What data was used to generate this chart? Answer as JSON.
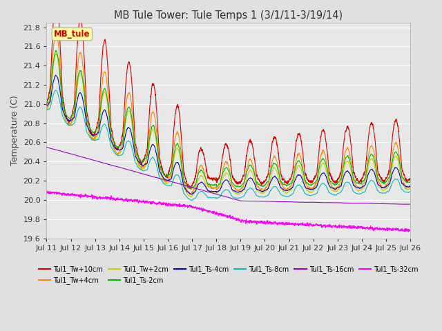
{
  "title": "MB Tule Tower: Tule Temps 1 (3/1/11-3/19/14)",
  "ylabel": "Temperature (C)",
  "xlabel": "",
  "ylim": [
    19.6,
    21.85
  ],
  "yticks": [
    19.6,
    19.8,
    20.0,
    20.2,
    20.4,
    20.6,
    20.8,
    21.0,
    21.2,
    21.4,
    21.6,
    21.8
  ],
  "xtick_labels": [
    "Jul 11",
    "Jul 12",
    "Jul 13",
    "Jul 14",
    "Jul 15",
    "Jul 16",
    "Jul 17",
    "Jul 18",
    "Jul 19",
    "Jul 20",
    "Jul 21",
    "Jul 22",
    "Jul 23",
    "Jul 24",
    "Jul 25",
    "Jul 26"
  ],
  "background_color": "#e0e0e0",
  "plot_bg_color": "#e8e8e8",
  "grid_color": "#ffffff",
  "series": [
    {
      "label": "Tul1_Tw+10cm",
      "color": "#dd0000"
    },
    {
      "label": "Tul1_Tw+4cm",
      "color": "#ff8800"
    },
    {
      "label": "Tul1_Tw+2cm",
      "color": "#cccc00"
    },
    {
      "label": "Tul1_Ts-2cm",
      "color": "#00bb00"
    },
    {
      "label": "Tul1_Ts-4cm",
      "color": "#0000cc"
    },
    {
      "label": "Tul1_Ts-8cm",
      "color": "#00bbbb"
    },
    {
      "label": "Tul1_Ts-16cm",
      "color": "#9900cc"
    },
    {
      "label": "Tul1_Ts-32cm",
      "color": "#ff00ff"
    }
  ],
  "annotation_text": "MB_tule",
  "lw": 0.8
}
